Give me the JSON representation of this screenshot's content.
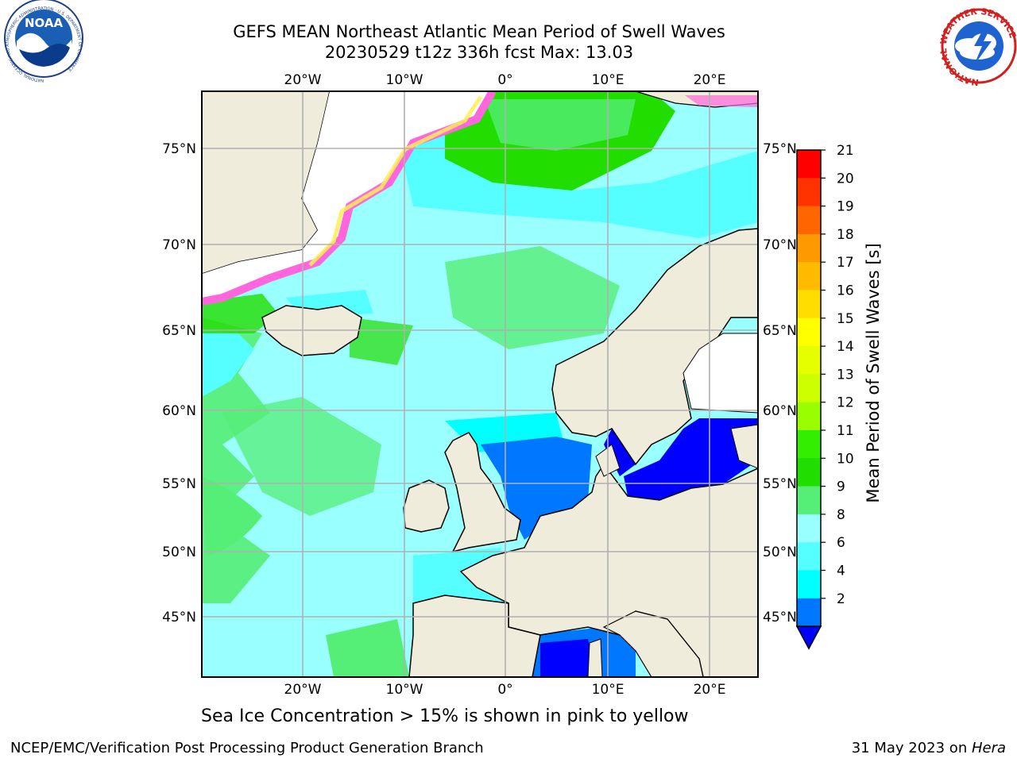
{
  "header": {
    "title_line1": "GEFS MEAN Northeast Atlantic Mean Period of Swell Waves",
    "title_line2": "20230529 t12z 336h fcst   Max: 13.03"
  },
  "map": {
    "lon_range": [
      -30,
      25
    ],
    "lat_range": [
      41,
      78
    ],
    "top_lon_labels": [
      "20°W",
      "10°W",
      "0°",
      "10°E",
      "20°E"
    ],
    "bottom_lon_labels": [
      "20°W",
      "10°W",
      "0°",
      "10°E",
      "20°E"
    ],
    "left_lat_labels": [
      "75°N",
      "70°N",
      "65°N",
      "60°N",
      "55°N",
      "50°N",
      "45°N"
    ],
    "right_lat_labels": [
      "75°N",
      "70°N",
      "65°N",
      "60°N",
      "55°N",
      "50°N",
      "45°N"
    ],
    "colors": {
      "land": "#efecdc",
      "ice_edge": "#ff66dd",
      "ice_yellow": "#ffee55",
      "grid": "#b0b0b0"
    }
  },
  "colorbar": {
    "label": "Mean Period of Swell Waves [s]",
    "ticks": [
      "21",
      "20",
      "19",
      "18",
      "17",
      "16",
      "15",
      "14",
      "13",
      "12",
      "11",
      "10",
      "9",
      "8",
      "6",
      "4",
      "2"
    ],
    "colors": [
      "#ff0000",
      "#ff3300",
      "#ff6600",
      "#ff9900",
      "#ffbb00",
      "#ffdd00",
      "#ffff00",
      "#e6ff00",
      "#ccff00",
      "#99ff00",
      "#33ee00",
      "#22dd00",
      "#55ee77",
      "#99ffff",
      "#55ffff",
      "#00ffff",
      "#0077ff"
    ],
    "extend_color": "#0000ff"
  },
  "logos": {
    "noaa_text": "NOAA",
    "noaa_ring": "NATIONAL OCEANIC AND ATMOSPHERIC ADMINISTRATION · U.S. DEPARTMENT OF COMMERCE",
    "nws_ring": "NATIONAL WEATHER SERVICE"
  },
  "note": "Sea Ice Concentration > 15% is shown in pink to yellow",
  "footer": {
    "left": "NCEP/EMC/Verification Post Processing Product Generation Branch",
    "right_date": "31 May 2023 on ",
    "right_machine": "Hera"
  }
}
